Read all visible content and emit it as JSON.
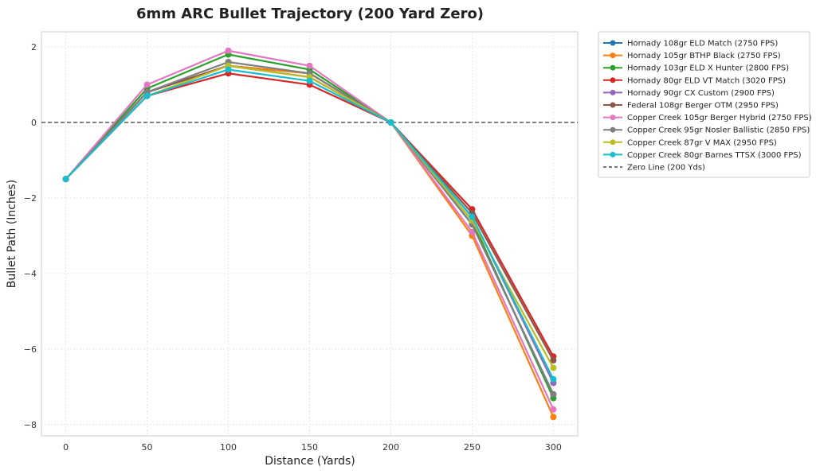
{
  "chart_data": {
    "type": "line",
    "title": "6mm ARC Bullet Trajectory (200 Yard Zero)",
    "xlabel": "Distance (Yards)",
    "ylabel": "Bullet Path (Inches)",
    "x": [
      0,
      50,
      100,
      150,
      200,
      250,
      300
    ],
    "xlim": [
      -15,
      315
    ],
    "ylim": [
      -8.3,
      2.4
    ],
    "xticks": [
      "0",
      "50",
      "100",
      "150",
      "200",
      "250",
      "300"
    ],
    "yticks": [
      "2",
      "0",
      "−2",
      "−4",
      "−6",
      "−8"
    ],
    "yticks_values": [
      2,
      0,
      -2,
      -4,
      -6,
      -8
    ],
    "grid": true,
    "legend_position": "outside-right",
    "series": [
      {
        "name": "Hornady 108gr ELD Match (2750 FPS)",
        "color": "#1f77b4",
        "values": [
          -1.5,
          0.8,
          1.5,
          1.3,
          0,
          -2.7,
          -7.2
        ]
      },
      {
        "name": "Hornady 105gr BTHP Black (2750 FPS)",
        "color": "#ff7f0e",
        "values": [
          -1.5,
          0.8,
          1.5,
          1.3,
          0,
          -3.0,
          -7.8
        ]
      },
      {
        "name": "Hornady 103gr ELD X Hunter (2800 FPS)",
        "color": "#2ca02c",
        "values": [
          -1.5,
          0.9,
          1.8,
          1.4,
          0,
          -2.6,
          -7.3
        ]
      },
      {
        "name": "Hornady 80gr ELD VT Match (3020 FPS)",
        "color": "#d62728",
        "values": [
          -1.5,
          0.7,
          1.3,
          1.0,
          0,
          -2.3,
          -6.2
        ]
      },
      {
        "name": "Hornady 90gr CX Custom (2900 FPS)",
        "color": "#9467bd",
        "values": [
          -1.5,
          0.8,
          1.5,
          1.2,
          0,
          -2.5,
          -6.9
        ]
      },
      {
        "name": "Federal 108gr Berger OTM (2950 FPS)",
        "color": "#8c564b",
        "values": [
          -1.5,
          0.8,
          1.5,
          1.2,
          0,
          -2.4,
          -6.3
        ]
      },
      {
        "name": "Copper Creek 105gr Berger Hybrid (2750 FPS)",
        "color": "#e377c2",
        "values": [
          -1.5,
          1.0,
          1.9,
          1.5,
          0,
          -2.9,
          -7.6
        ]
      },
      {
        "name": "Copper Creek 95gr Nosler Ballistic (2850 FPS)",
        "color": "#7f7f7f",
        "values": [
          -1.5,
          0.8,
          1.6,
          1.3,
          0,
          -2.7,
          -7.2
        ]
      },
      {
        "name": "Copper Creek 87gr V MAX (2950 FPS)",
        "color": "#bcbd22",
        "values": [
          -1.5,
          0.7,
          1.5,
          1.2,
          0,
          -2.6,
          -6.5
        ]
      },
      {
        "name": "Copper Creek 80gr Barnes TTSX (3000 FPS)",
        "color": "#17becf",
        "values": [
          -1.5,
          0.7,
          1.4,
          1.1,
          0,
          -2.5,
          -6.8
        ]
      }
    ],
    "reference_line": {
      "name": "Zero Line (200 Yds)",
      "y": 0,
      "color": "#222222",
      "style": "dashed"
    }
  }
}
